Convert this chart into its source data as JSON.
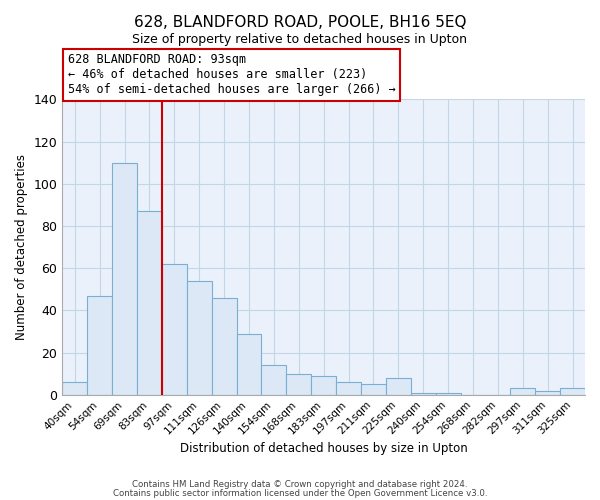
{
  "title": "628, BLANDFORD ROAD, POOLE, BH16 5EQ",
  "subtitle": "Size of property relative to detached houses in Upton",
  "xlabel": "Distribution of detached houses by size in Upton",
  "ylabel": "Number of detached properties",
  "bar_labels": [
    "40sqm",
    "54sqm",
    "69sqm",
    "83sqm",
    "97sqm",
    "111sqm",
    "126sqm",
    "140sqm",
    "154sqm",
    "168sqm",
    "183sqm",
    "197sqm",
    "211sqm",
    "225sqm",
    "240sqm",
    "254sqm",
    "268sqm",
    "282sqm",
    "297sqm",
    "311sqm",
    "325sqm"
  ],
  "bar_values": [
    6,
    47,
    110,
    87,
    62,
    54,
    46,
    29,
    14,
    10,
    9,
    6,
    5,
    8,
    1,
    1,
    0,
    0,
    3,
    2,
    3
  ],
  "bar_color_fill": "#dce8f5",
  "bar_color_edge": "#7aafd4",
  "marker_color": "#cc0000",
  "annotation_title": "628 BLANDFORD ROAD: 93sqm",
  "annotation_line1": "← 46% of detached houses are smaller (223)",
  "annotation_line2": "54% of semi-detached houses are larger (266) →",
  "annotation_box_color": "#ffffff",
  "annotation_box_edge": "#cc0000",
  "ylim": [
    0,
    140
  ],
  "yticks": [
    0,
    20,
    40,
    60,
    80,
    100,
    120,
    140
  ],
  "footer_line1": "Contains HM Land Registry data © Crown copyright and database right 2024.",
  "footer_line2": "Contains public sector information licensed under the Open Government Licence v3.0.",
  "bg_color": "#ffffff",
  "plot_bg_color": "#eaf1fa",
  "grid_color": "#c5d5e8",
  "title_fontsize": 11,
  "subtitle_fontsize": 9
}
